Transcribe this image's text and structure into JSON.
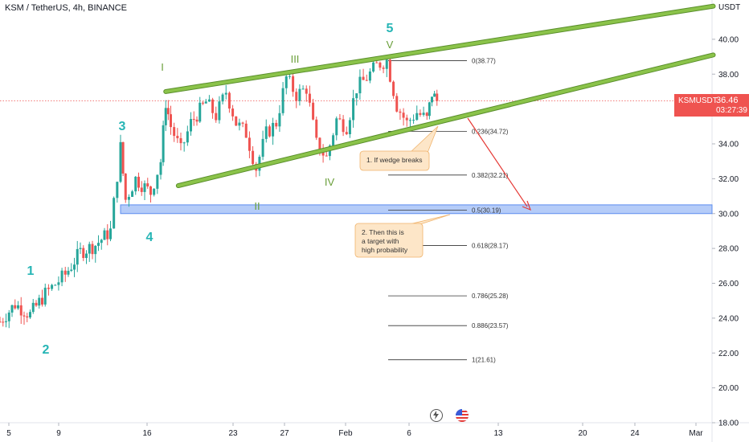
{
  "header": {
    "title": "KSM / TetherUS, 4h, BINANCE"
  },
  "axis": {
    "unit": "USDT"
  },
  "price_tag": {
    "symbol": "KSMUSDT",
    "price": "36.46",
    "countdown": "03:27:39"
  },
  "colors": {
    "up": "#26a69a",
    "down": "#ef5350",
    "wedge": "#8bc34a",
    "wedge_edge": "#5a8f2c",
    "wave_impulse": "#26b5b5",
    "wave_sub": "#6a9f3a",
    "zone": "#5b8def",
    "arrow": "#e53935",
    "callout_bg": "#fde6c8",
    "callout_border": "#f0b36b"
  },
  "chart_data": {
    "type": "candlestick",
    "symbol": "KSM / TetherUS",
    "interval": "4h",
    "exchange": "BINANCE",
    "y_range": [
      18,
      42
    ],
    "y_ticks": [
      18,
      20,
      22,
      24,
      26,
      28,
      30,
      32,
      34,
      36,
      38,
      40
    ],
    "y_tick_labels": [
      "18.00",
      "20.00",
      "22.00",
      "24.00",
      "26.00",
      "28.00",
      "30.00",
      "32.00",
      "34.00",
      "36.00",
      "38.00",
      "40.00"
    ],
    "x_tick_labels": [
      "5",
      "9",
      "16",
      "23",
      "27",
      "Feb",
      "6",
      "13",
      "20",
      "24",
      "Mar"
    ],
    "last_price": 36.46,
    "price_path": [
      [
        0,
        23.8
      ],
      [
        3,
        24.8
      ],
      [
        6,
        24.2
      ],
      [
        9,
        25.4
      ],
      [
        13,
        26.5
      ],
      [
        16,
        27.8
      ],
      [
        19,
        28.2
      ],
      [
        22,
        29.0
      ],
      [
        24,
        33.8
      ],
      [
        25,
        30.8
      ],
      [
        27,
        32.0
      ],
      [
        30,
        31.2
      ],
      [
        32,
        33.0
      ],
      [
        33,
        36.4
      ],
      [
        34,
        35.0
      ],
      [
        36,
        33.6
      ],
      [
        38,
        35.2
      ],
      [
        41,
        36.4
      ],
      [
        43,
        35.6
      ],
      [
        45,
        37.0
      ],
      [
        47,
        35.2
      ],
      [
        49,
        34.6
      ],
      [
        51,
        32.6
      ],
      [
        53,
        34.6
      ],
      [
        55,
        35.2
      ],
      [
        57,
        37.8
      ],
      [
        59,
        36.8
      ],
      [
        61,
        37.2
      ],
      [
        63,
        34.0
      ],
      [
        65,
        33.2
      ],
      [
        67,
        35.4
      ],
      [
        69,
        35.0
      ],
      [
        71,
        37.2
      ],
      [
        73,
        37.8
      ],
      [
        75,
        38.5
      ],
      [
        77,
        38.8
      ],
      [
        79,
        36.2
      ],
      [
        81,
        35.2
      ],
      [
        83,
        35.8
      ],
      [
        85,
        35.4
      ],
      [
        86,
        36.9
      ],
      [
        87,
        36.46
      ]
    ],
    "wedge_upper": [
      [
        0.3,
        0
      ],
      [
        1,
        0
      ],
      [
        [
          17,
          36.6
        ],
        [
          80,
          42.1
        ]
      ]
    ],
    "wedge_lower": [
      [
        [
          18,
          31.6
        ],
        [
          80,
          39.1
        ]
      ]
    ],
    "target_zone": [
      30.0,
      30.5
    ],
    "fib_levels": [
      {
        "label": "0(38.77)",
        "value": 38.77
      },
      {
        "label": "0.236(34.72)",
        "value": 34.72
      },
      {
        "label": "0.382(32.21)",
        "value": 32.21
      },
      {
        "label": "0.5(30.19)",
        "value": 30.19
      },
      {
        "label": "0.618(28.17)",
        "value": 28.17
      },
      {
        "label": "0.786(25.28)",
        "value": 25.28
      },
      {
        "label": "0.886(23.57)",
        "value": 23.57
      },
      {
        "label": "1(21.61)",
        "value": 21.61
      }
    ],
    "waves": [
      {
        "label": "1",
        "group": "impulse"
      },
      {
        "label": "2",
        "group": "impulse"
      },
      {
        "label": "3",
        "group": "impulse"
      },
      {
        "label": "4",
        "group": "impulse"
      },
      {
        "label": "5",
        "group": "impulse"
      },
      {
        "label": "I",
        "group": "sub"
      },
      {
        "label": "II",
        "group": "sub"
      },
      {
        "label": "III",
        "group": "sub"
      },
      {
        "label": "IV",
        "group": "sub"
      },
      {
        "label": "V",
        "group": "sub"
      }
    ],
    "annotations": [
      {
        "text": "1. If wedge breaks"
      },
      {
        "text": "2. Then this is a target with high probability"
      }
    ]
  }
}
